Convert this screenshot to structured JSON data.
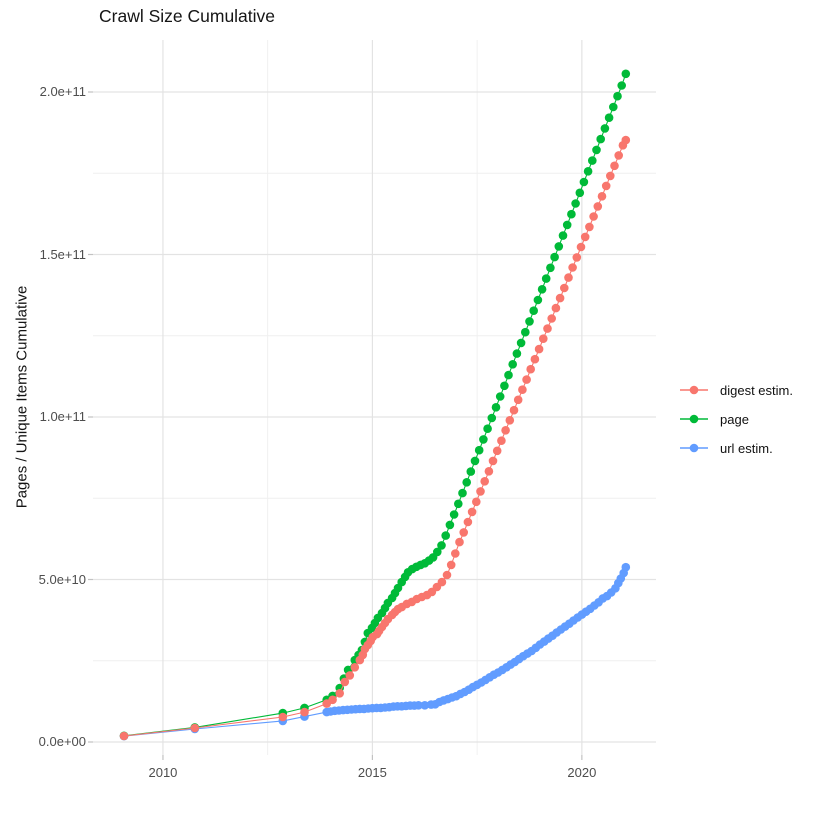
{
  "chart_data": {
    "type": "scatter",
    "title": "Crawl Size Cumulative",
    "xlabel": "",
    "ylabel": "Pages / Unique Items Cumulative",
    "unit": 1000000000,
    "xlim": [
      2008.33,
      2021.77
    ],
    "ylim_billions": [
      -4,
      216
    ],
    "x_ticks": [
      2010,
      2015,
      2020
    ],
    "x_tick_labels": [
      "2010",
      "2015",
      "2020"
    ],
    "x_minor": [
      2012.5,
      2017.5
    ],
    "y_ticks_billions": [
      0,
      50,
      100,
      150,
      200
    ],
    "y_tick_labels": [
      "0.0e+00",
      "5.0e+10",
      "1.0e+11",
      "1.5e+11",
      "2.0e+11"
    ],
    "y_minor_billions": [
      25,
      75,
      125,
      175
    ],
    "grid": true,
    "grid_major_color": "#e3e3e3",
    "grid_minor_color": "#efefef",
    "tick_color": "#c2c2c2",
    "legend_position": "right",
    "draw_order": [
      2,
      1,
      0
    ],
    "series": [
      {
        "name": "digest estim.",
        "color": "#F8766D",
        "points_year_billions": [
          [
            2009.07,
            1.85
          ],
          [
            2010.76,
            4.3
          ],
          [
            2012.86,
            7.7
          ],
          [
            2013.38,
            9.2
          ],
          [
            2013.91,
            11.8
          ],
          [
            2014.05,
            13.0
          ],
          [
            2014.22,
            15.0
          ],
          [
            2014.34,
            18.5
          ],
          [
            2014.46,
            20.5
          ],
          [
            2014.58,
            23.0
          ],
          [
            2014.7,
            25.2
          ],
          [
            2014.77,
            26.8
          ],
          [
            2014.82,
            28.6
          ],
          [
            2014.89,
            29.8
          ],
          [
            2014.96,
            31.1
          ],
          [
            2015.01,
            32.3
          ],
          [
            2015.11,
            33.2
          ],
          [
            2015.16,
            34.2
          ],
          [
            2015.23,
            35.4
          ],
          [
            2015.3,
            36.6
          ],
          [
            2015.37,
            37.8
          ],
          [
            2015.47,
            39.1
          ],
          [
            2015.54,
            40.0
          ],
          [
            2015.61,
            40.9
          ],
          [
            2015.7,
            41.5
          ],
          [
            2015.82,
            42.5
          ],
          [
            2015.94,
            43.1
          ],
          [
            2016.06,
            44.0
          ],
          [
            2016.18,
            44.6
          ],
          [
            2016.3,
            45.2
          ],
          [
            2016.42,
            46.2
          ],
          [
            2016.54,
            47.7
          ],
          [
            2016.66,
            49.2
          ],
          [
            2016.78,
            51.4
          ],
          [
            2016.88,
            54.5
          ],
          [
            2016.98,
            58.0
          ],
          [
            2017.08,
            61.5
          ],
          [
            2017.18,
            64.5
          ],
          [
            2017.28,
            67.7
          ],
          [
            2017.38,
            70.8
          ],
          [
            2017.48,
            73.9
          ],
          [
            2017.58,
            77.1
          ],
          [
            2017.68,
            80.2
          ],
          [
            2017.78,
            83.3
          ],
          [
            2017.88,
            86.5
          ],
          [
            2017.98,
            89.6
          ],
          [
            2018.08,
            92.7
          ],
          [
            2018.18,
            95.9
          ],
          [
            2018.28,
            99.0
          ],
          [
            2018.38,
            102.1
          ],
          [
            2018.48,
            105.3
          ],
          [
            2018.58,
            108.4
          ],
          [
            2018.68,
            111.5
          ],
          [
            2018.78,
            114.7
          ],
          [
            2018.88,
            117.8
          ],
          [
            2018.98,
            120.9
          ],
          [
            2019.08,
            124.1
          ],
          [
            2019.18,
            127.2
          ],
          [
            2019.28,
            130.3
          ],
          [
            2019.38,
            133.5
          ],
          [
            2019.48,
            136.6
          ],
          [
            2019.58,
            139.7
          ],
          [
            2019.68,
            142.9
          ],
          [
            2019.78,
            146.0
          ],
          [
            2019.88,
            149.1
          ],
          [
            2019.98,
            152.3
          ],
          [
            2020.08,
            155.4
          ],
          [
            2020.18,
            158.5
          ],
          [
            2020.28,
            161.7
          ],
          [
            2020.38,
            164.8
          ],
          [
            2020.48,
            167.9
          ],
          [
            2020.58,
            171.1
          ],
          [
            2020.68,
            174.2
          ],
          [
            2020.78,
            177.3
          ],
          [
            2020.88,
            180.5
          ],
          [
            2020.98,
            183.6
          ],
          [
            2021.05,
            185.2
          ]
        ]
      },
      {
        "name": "page",
        "color": "#00BA38",
        "points_year_billions": [
          [
            2009.07,
            1.9
          ],
          [
            2010.76,
            4.5
          ],
          [
            2012.86,
            8.9
          ],
          [
            2013.38,
            10.5
          ],
          [
            2013.91,
            13.0
          ],
          [
            2014.05,
            14.2
          ],
          [
            2014.22,
            16.6
          ],
          [
            2014.32,
            19.5
          ],
          [
            2014.42,
            22.2
          ],
          [
            2014.58,
            25.2
          ],
          [
            2014.67,
            26.8
          ],
          [
            2014.75,
            28.3
          ],
          [
            2014.82,
            30.8
          ],
          [
            2014.89,
            33.5
          ],
          [
            2014.99,
            35.1
          ],
          [
            2015.06,
            36.6
          ],
          [
            2015.13,
            38.2
          ],
          [
            2015.23,
            39.7
          ],
          [
            2015.3,
            41.2
          ],
          [
            2015.37,
            42.8
          ],
          [
            2015.47,
            44.3
          ],
          [
            2015.54,
            45.8
          ],
          [
            2015.61,
            47.4
          ],
          [
            2015.7,
            49.2
          ],
          [
            2015.78,
            50.8
          ],
          [
            2015.85,
            52.2
          ],
          [
            2015.95,
            53.2
          ],
          [
            2016.05,
            53.9
          ],
          [
            2016.15,
            54.5
          ],
          [
            2016.25,
            55.0
          ],
          [
            2016.35,
            55.8
          ],
          [
            2016.45,
            56.8
          ],
          [
            2016.55,
            58.5
          ],
          [
            2016.65,
            60.5
          ],
          [
            2016.75,
            63.5
          ],
          [
            2016.85,
            66.8
          ],
          [
            2016.95,
            70.0
          ],
          [
            2017.05,
            73.3
          ],
          [
            2017.15,
            76.6
          ],
          [
            2017.25,
            79.9
          ],
          [
            2017.35,
            83.2
          ],
          [
            2017.45,
            86.5
          ],
          [
            2017.55,
            89.8
          ],
          [
            2017.65,
            93.1
          ],
          [
            2017.75,
            96.4
          ],
          [
            2017.85,
            99.7
          ],
          [
            2017.95,
            103.0
          ],
          [
            2018.05,
            106.3
          ],
          [
            2018.15,
            109.6
          ],
          [
            2018.25,
            112.9
          ],
          [
            2018.35,
            116.2
          ],
          [
            2018.45,
            119.5
          ],
          [
            2018.55,
            122.8
          ],
          [
            2018.65,
            126.1
          ],
          [
            2018.75,
            129.4
          ],
          [
            2018.85,
            132.7
          ],
          [
            2018.95,
            136.0
          ],
          [
            2019.05,
            139.3
          ],
          [
            2019.15,
            142.6
          ],
          [
            2019.25,
            145.9
          ],
          [
            2019.35,
            149.2
          ],
          [
            2019.45,
            152.5
          ],
          [
            2019.55,
            155.8
          ],
          [
            2019.65,
            159.1
          ],
          [
            2019.75,
            162.4
          ],
          [
            2019.85,
            165.7
          ],
          [
            2019.95,
            169.0
          ],
          [
            2020.05,
            172.3
          ],
          [
            2020.15,
            175.6
          ],
          [
            2020.25,
            178.9
          ],
          [
            2020.35,
            182.2
          ],
          [
            2020.45,
            185.5
          ],
          [
            2020.55,
            188.8
          ],
          [
            2020.65,
            192.1
          ],
          [
            2020.75,
            195.4
          ],
          [
            2020.85,
            198.7
          ],
          [
            2020.95,
            202.0
          ],
          [
            2021.05,
            205.6
          ]
        ]
      },
      {
        "name": "url estim.",
        "color": "#619CFF",
        "points_year_billions": [
          [
            2009.07,
            1.8
          ],
          [
            2010.76,
            4.0
          ],
          [
            2012.86,
            6.5
          ],
          [
            2013.38,
            7.8
          ],
          [
            2013.91,
            9.2
          ],
          [
            2014.0,
            9.4
          ],
          [
            2014.1,
            9.6
          ],
          [
            2014.2,
            9.7
          ],
          [
            2014.3,
            9.8
          ],
          [
            2014.4,
            9.9
          ],
          [
            2014.5,
            10.0
          ],
          [
            2014.6,
            10.1
          ],
          [
            2014.7,
            10.2
          ],
          [
            2014.8,
            10.2
          ],
          [
            2014.9,
            10.3
          ],
          [
            2015.0,
            10.4
          ],
          [
            2015.1,
            10.5
          ],
          [
            2015.2,
            10.5
          ],
          [
            2015.3,
            10.6
          ],
          [
            2015.4,
            10.7
          ],
          [
            2015.5,
            10.9
          ],
          [
            2015.6,
            11.0
          ],
          [
            2015.7,
            11.0
          ],
          [
            2015.8,
            11.1
          ],
          [
            2015.9,
            11.2
          ],
          [
            2016.0,
            11.2
          ],
          [
            2016.1,
            11.3
          ],
          [
            2016.25,
            11.3
          ],
          [
            2016.4,
            11.5
          ],
          [
            2016.5,
            11.6
          ],
          [
            2016.6,
            12.3
          ],
          [
            2016.7,
            12.8
          ],
          [
            2016.8,
            13.2
          ],
          [
            2016.9,
            13.7
          ],
          [
            2017.0,
            14.1
          ],
          [
            2017.1,
            14.8
          ],
          [
            2017.2,
            15.4
          ],
          [
            2017.3,
            16.1
          ],
          [
            2017.4,
            16.9
          ],
          [
            2017.5,
            17.6
          ],
          [
            2017.6,
            18.3
          ],
          [
            2017.7,
            19.1
          ],
          [
            2017.8,
            19.9
          ],
          [
            2017.9,
            20.7
          ],
          [
            2018.0,
            21.4
          ],
          [
            2018.1,
            22.2
          ],
          [
            2018.2,
            23.0
          ],
          [
            2018.3,
            23.8
          ],
          [
            2018.4,
            24.6
          ],
          [
            2018.5,
            25.5
          ],
          [
            2018.6,
            26.4
          ],
          [
            2018.7,
            27.2
          ],
          [
            2018.8,
            28.0
          ],
          [
            2018.9,
            29.0
          ],
          [
            2019.0,
            30.0
          ],
          [
            2019.1,
            30.9
          ],
          [
            2019.2,
            31.8
          ],
          [
            2019.3,
            32.7
          ],
          [
            2019.4,
            33.7
          ],
          [
            2019.5,
            34.6
          ],
          [
            2019.6,
            35.5
          ],
          [
            2019.7,
            36.4
          ],
          [
            2019.8,
            37.4
          ],
          [
            2019.9,
            38.3
          ],
          [
            2020.0,
            39.2
          ],
          [
            2020.1,
            40.1
          ],
          [
            2020.2,
            41.0
          ],
          [
            2020.3,
            42.0
          ],
          [
            2020.4,
            43.0
          ],
          [
            2020.5,
            44.2
          ],
          [
            2020.6,
            44.9
          ],
          [
            2020.7,
            46.0
          ],
          [
            2020.8,
            47.3
          ],
          [
            2020.87,
            48.9
          ],
          [
            2020.93,
            50.3
          ],
          [
            2021.0,
            52.0
          ],
          [
            2021.05,
            53.8
          ]
        ]
      }
    ]
  }
}
